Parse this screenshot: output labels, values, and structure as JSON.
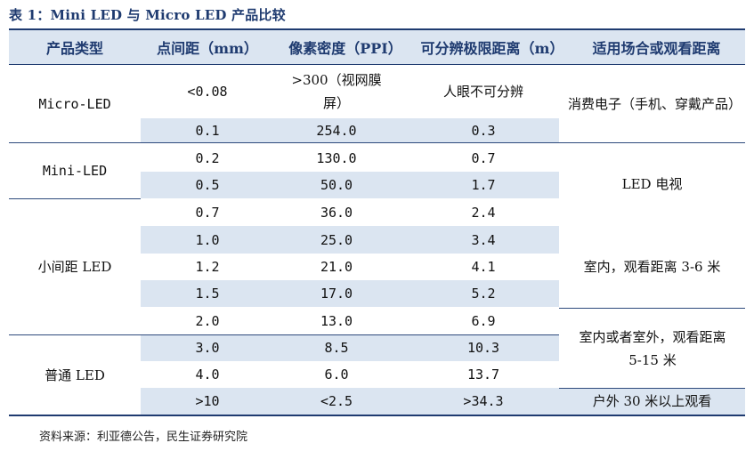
{
  "caption": "表 1：Mini LED 与 Micro LED 产品比较",
  "headers": [
    "产品类型",
    "点间距（mm）",
    "像素密度（PPI）",
    "可分辨极限距离（m）",
    "适用场合或观看距离"
  ],
  "categories": [
    "Micro-LED",
    "Mini-LED",
    "小间距 LED",
    "普通 LED"
  ],
  "rows": [
    {
      "pitch": "<0.08",
      "ppi": ">300（视网膜屏）",
      "distance": "人眼不可分辨"
    },
    {
      "pitch": "0.1",
      "ppi": "254.0",
      "distance": "0.3"
    },
    {
      "pitch": "0.2",
      "ppi": "130.0",
      "distance": "0.7"
    },
    {
      "pitch": "0.5",
      "ppi": "50.0",
      "distance": "1.7"
    },
    {
      "pitch": "0.7",
      "ppi": "36.0",
      "distance": "2.4"
    },
    {
      "pitch": "1.0",
      "ppi": "25.0",
      "distance": "3.4"
    },
    {
      "pitch": "1.2",
      "ppi": "21.0",
      "distance": "4.1"
    },
    {
      "pitch": "1.5",
      "ppi": "17.0",
      "distance": "5.2"
    },
    {
      "pitch": "2.0",
      "ppi": "13.0",
      "distance": "6.9"
    },
    {
      "pitch": "3.0",
      "ppi": "8.5",
      "distance": "10.3"
    },
    {
      "pitch": "4.0",
      "ppi": "6.0",
      "distance": "13.7"
    },
    {
      "pitch": ">10",
      "ppi": "<2.5",
      "distance": ">34.3"
    }
  ],
  "usage": [
    "消费电子（手机、穿戴产品）",
    "LED 电视",
    "室内，观看距离 3-6 米",
    "室内或者室外，观看距离 5-15 米",
    "户外 30 米以上观看"
  ],
  "source": "资料来源：利亚德公告，民生证券研究院",
  "colors": {
    "header_fill": "#dbe5f1",
    "rule": "#1f3b70",
    "band_fill": "#dbe5f1"
  }
}
